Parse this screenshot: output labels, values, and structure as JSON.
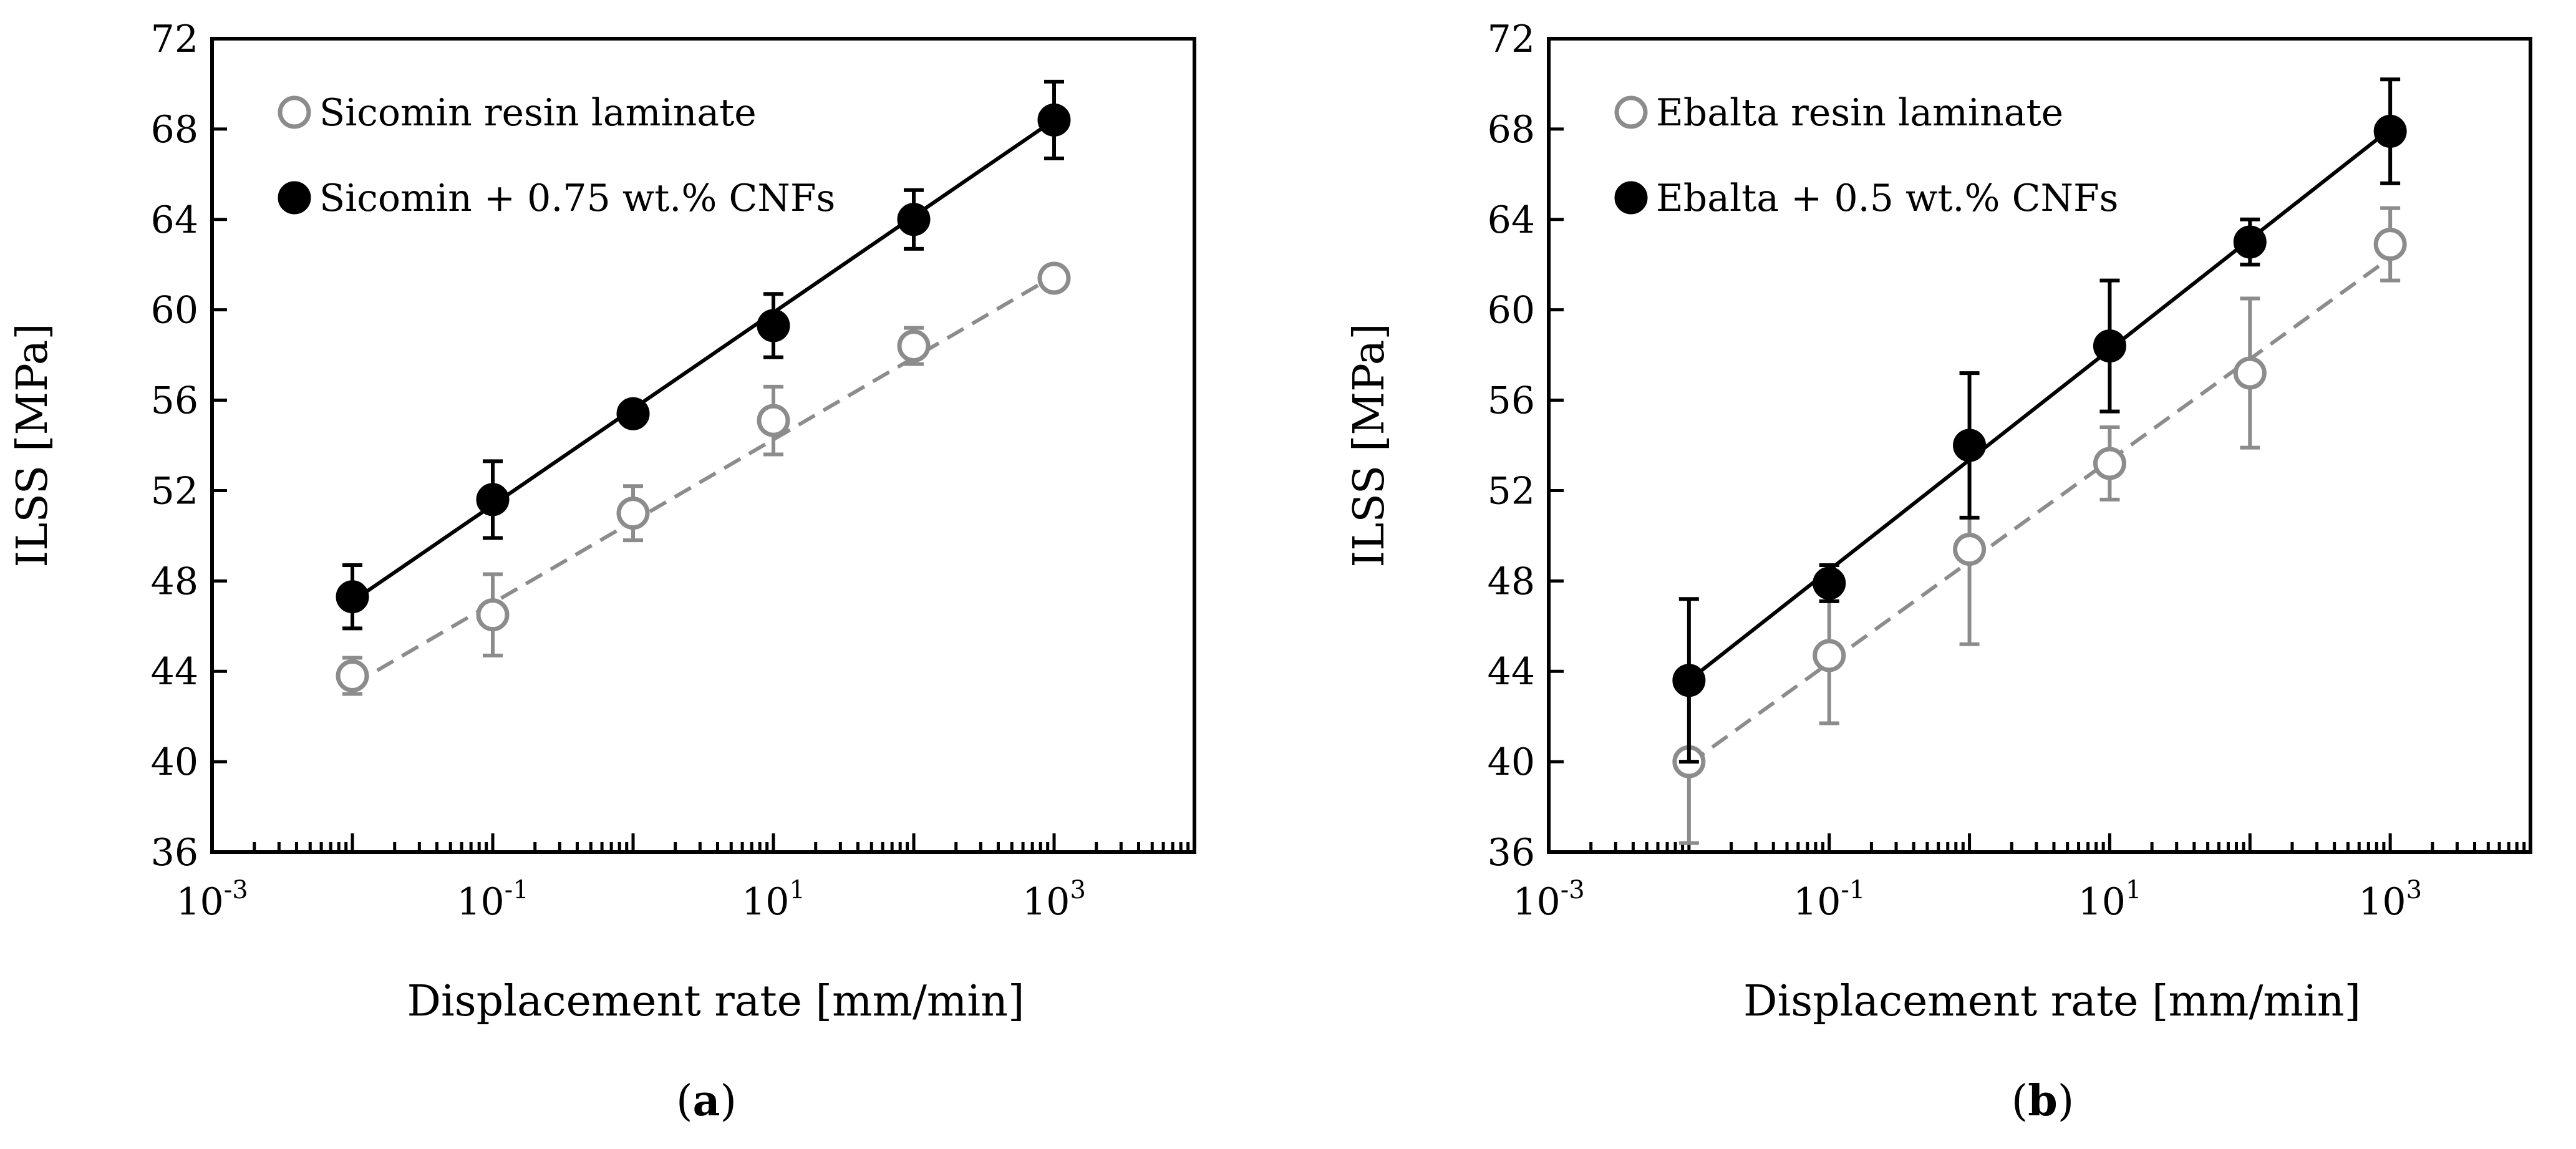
{
  "chart_data": [
    {
      "type": "scatter",
      "panel_label": "a",
      "xlabel": "Displacement rate [mm/min]",
      "ylabel": "ILSS [MPa]",
      "xscale": "log",
      "xlim": [
        0.001,
        10000
      ],
      "ylim": [
        36,
        72
      ],
      "yticks": [
        36,
        40,
        44,
        48,
        52,
        56,
        60,
        64,
        68,
        72
      ],
      "xticks": [
        {
          "value": 0.001,
          "base": "10",
          "exp": "-3"
        },
        {
          "value": 0.1,
          "base": "10",
          "exp": "-1"
        },
        {
          "value": 10,
          "base": "10",
          "exp": "1"
        },
        {
          "value": 1000,
          "base": "10",
          "exp": "3"
        }
      ],
      "legend_position": "top-left",
      "series": [
        {
          "name": "Sicomin resin laminate",
          "marker": "open-circle",
          "color": "#8c8c8c",
          "fit": "dashed",
          "x": [
            0.01,
            0.1,
            1,
            10,
            100,
            1000
          ],
          "y": [
            43.8,
            46.5,
            51.0,
            55.1,
            58.4,
            61.4
          ],
          "err": [
            0.8,
            1.8,
            1.2,
            1.5,
            0.8,
            0.0
          ],
          "fit_line": [
            [
              0.01,
              43.4
            ],
            [
              1000,
              61.5
            ]
          ]
        },
        {
          "name": "Sicomin + 0.75 wt.% CNFs",
          "marker": "filled-circle",
          "color": "#000000",
          "fit": "solid",
          "x": [
            0.01,
            0.1,
            1,
            10,
            100,
            1000
          ],
          "y": [
            47.3,
            51.6,
            55.4,
            59.3,
            64.0,
            68.4
          ],
          "err": [
            1.4,
            1.7,
            0.0,
            1.4,
            1.3,
            1.7
          ],
          "fit_line": [
            [
              0.01,
              47.1
            ],
            [
              1000,
              68.4
            ]
          ]
        }
      ]
    },
    {
      "type": "scatter",
      "panel_label": "b",
      "xlabel": "Displacement rate [mm/min]",
      "ylabel": "ILSS [MPa]",
      "xscale": "log",
      "xlim": [
        0.001,
        10000
      ],
      "ylim": [
        36,
        72
      ],
      "yticks": [
        36,
        40,
        44,
        48,
        52,
        56,
        60,
        64,
        68,
        72
      ],
      "xticks": [
        {
          "value": 0.001,
          "base": "10",
          "exp": "-3"
        },
        {
          "value": 0.1,
          "base": "10",
          "exp": "-1"
        },
        {
          "value": 10,
          "base": "10",
          "exp": "1"
        },
        {
          "value": 1000,
          "base": "10",
          "exp": "3"
        }
      ],
      "legend_position": "top-left",
      "series": [
        {
          "name": "Ebalta resin laminate",
          "marker": "open-circle",
          "color": "#8c8c8c",
          "fit": "dashed",
          "x": [
            0.01,
            0.1,
            1,
            10,
            100,
            1000
          ],
          "y": [
            40.0,
            44.7,
            49.4,
            53.2,
            57.2,
            62.9
          ],
          "err": [
            3.6,
            3.0,
            4.2,
            1.6,
            3.3,
            1.6
          ],
          "fit_line": [
            [
              0.01,
              39.9
            ],
            [
              1000,
              62.3
            ]
          ]
        },
        {
          "name": "Ebalta + 0.5 wt.% CNFs",
          "marker": "filled-circle",
          "color": "#000000",
          "fit": "solid",
          "x": [
            0.01,
            0.1,
            1,
            10,
            100,
            1000
          ],
          "y": [
            43.6,
            47.9,
            54.0,
            58.4,
            63.0,
            67.9
          ],
          "err": [
            3.6,
            0.8,
            3.2,
            2.9,
            1.0,
            2.3
          ],
          "fit_line": [
            [
              0.01,
              43.6
            ],
            [
              1000,
              68.0
            ]
          ]
        }
      ]
    }
  ]
}
